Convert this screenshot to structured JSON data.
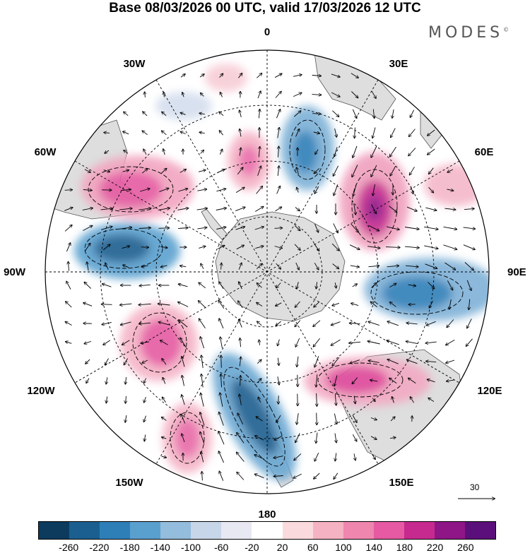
{
  "title": "Base 08/03/2026 00 UTC, valid 17/03/2026 12 UTC",
  "brand": "MODES",
  "brand_mark": "©",
  "longitude_labels": {
    "top": "0",
    "top_right": "30E",
    "right_upper": "60E",
    "right": "90E",
    "right_lower": "120E",
    "bottom_right": "150E",
    "bottom": "180",
    "bottom_left": "150W",
    "left_lower": "120W",
    "left": "90W",
    "left_upper": "60W",
    "top_left": "30W"
  },
  "vector_scale_label": "30",
  "colorbar": {
    "colors": [
      "#0d3b5e",
      "#1a5f8f",
      "#2e7fb8",
      "#5aa0cf",
      "#94bcdc",
      "#c8d6ea",
      "#e8e8f3",
      "#ffffff",
      "#fadadd",
      "#f5b2c2",
      "#ee86ae",
      "#e55aa2",
      "#c62a8e",
      "#8e1687",
      "#5b0f7a"
    ],
    "tick_labels": [
      "-260",
      "-220",
      "-180",
      "-140",
      "-100",
      "-60",
      "-20",
      "20",
      "60",
      "100",
      "140",
      "180",
      "220",
      "260"
    ]
  }
}
